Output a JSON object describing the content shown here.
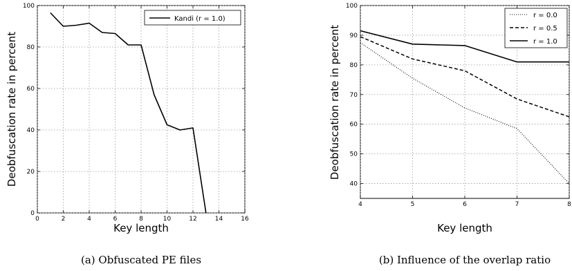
{
  "chart_data": [
    {
      "type": "line",
      "caption": "(a) Obfuscated PE files",
      "xlabel": "Key length",
      "ylabel": "Deobfuscation rate in percent",
      "xlim": [
        0,
        16
      ],
      "ylim": [
        0,
        100
      ],
      "xticks": [
        0,
        2,
        4,
        6,
        8,
        10,
        12,
        14,
        16
      ],
      "yticks": [
        0,
        20,
        40,
        60,
        80,
        100
      ],
      "grid": true,
      "legend_position": "top-right",
      "series": [
        {
          "name": "Kandi (r = 1.0)",
          "style": "solid",
          "color": "#000000",
          "x": [
            1,
            2,
            3,
            4,
            5,
            6,
            7,
            8,
            9,
            10,
            11,
            12,
            13
          ],
          "y": [
            96.5,
            90,
            90.5,
            91.5,
            87,
            86.5,
            81,
            81,
            57,
            42.5,
            40,
            41,
            0
          ]
        }
      ]
    },
    {
      "type": "line",
      "caption": "(b) Influence of the overlap ratio",
      "xlabel": "Key length",
      "ylabel": "Deobfuscation rate in percent",
      "xlim": [
        4,
        8
      ],
      "ylim": [
        35,
        100
      ],
      "xticks": [
        4,
        5,
        6,
        7,
        8
      ],
      "yticks": [
        40,
        50,
        60,
        70,
        80,
        90,
        100
      ],
      "grid": true,
      "legend_position": "top-right",
      "series": [
        {
          "name": "r = 0.0",
          "style": "dotted",
          "color": "#000000",
          "x": [
            4,
            5,
            6,
            7,
            8
          ],
          "y": [
            87.5,
            75.5,
            65.5,
            58.5,
            40
          ]
        },
        {
          "name": "r = 0.5",
          "style": "dashed",
          "color": "#000000",
          "x": [
            4,
            5,
            6,
            7,
            8
          ],
          "y": [
            89.5,
            82,
            78,
            68.5,
            62.5
          ]
        },
        {
          "name": "r = 1.0",
          "style": "solid",
          "color": "#000000",
          "x": [
            4,
            5,
            6,
            7,
            8
          ],
          "y": [
            91.5,
            87,
            86.5,
            81,
            81
          ]
        }
      ]
    }
  ]
}
